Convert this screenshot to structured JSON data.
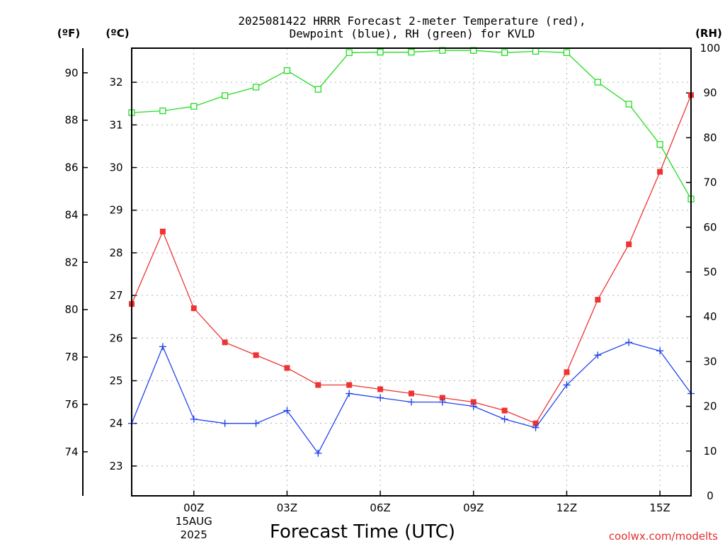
{
  "chart_data": {
    "type": "line",
    "title": "2025081422 HRRR Forecast 2-meter Temperature (red),",
    "subtitle": "Dewpoint (blue), RH (green) for KVLD",
    "xlabel": "Forecast Time (UTC)",
    "credit": "coolwx.com/modelts",
    "x_hours": [
      -2,
      -1,
      0,
      1,
      2,
      3,
      4,
      5,
      6,
      7,
      8,
      9,
      10,
      11,
      12,
      13,
      14,
      15,
      16
    ],
    "x_ticks": [
      {
        "hour": 0,
        "label": "00Z",
        "sub1": "15AUG",
        "sub2": "2025"
      },
      {
        "hour": 3,
        "label": "03Z"
      },
      {
        "hour": 6,
        "label": "06Z"
      },
      {
        "hour": 9,
        "label": "09Z"
      },
      {
        "hour": 12,
        "label": "12Z"
      },
      {
        "hour": 15,
        "label": "15Z"
      }
    ],
    "xlim": [
      -2,
      16
    ],
    "axes": {
      "fahrenheit": {
        "unit": "(ºF)",
        "ticks": [
          74,
          76,
          78,
          80,
          82,
          84,
          86,
          88,
          90
        ]
      },
      "celsius": {
        "unit": "(ºC)",
        "ticks": [
          23,
          24,
          25,
          26,
          27,
          28,
          29,
          30,
          31,
          32
        ],
        "ylim": [
          22.3,
          32.8
        ]
      },
      "rh": {
        "unit": "(RH)",
        "ticks": [
          0,
          10,
          20,
          30,
          40,
          50,
          60,
          70,
          80,
          90,
          100
        ],
        "ylim": [
          0,
          100
        ]
      }
    },
    "series": [
      {
        "key": "temperature",
        "axis": "celsius",
        "color": "#ee3333",
        "marker": "square-filled",
        "values": [
          26.8,
          28.5,
          26.7,
          25.9,
          25.6,
          25.3,
          24.9,
          24.9,
          24.8,
          24.7,
          24.6,
          24.5,
          24.3,
          24.0,
          25.2,
          26.9,
          28.2,
          29.9,
          31.7
        ]
      },
      {
        "key": "dewpoint",
        "axis": "celsius",
        "color": "#2244ee",
        "marker": "plus",
        "values": [
          24.0,
          25.8,
          24.1,
          24.0,
          24.0,
          24.3,
          23.3,
          24.7,
          24.6,
          24.5,
          24.5,
          24.4,
          24.1,
          23.9,
          24.9,
          25.6,
          25.9,
          25.7,
          24.7
        ]
      },
      {
        "key": "rh",
        "axis": "rh",
        "color": "#22dd22",
        "marker": "square-open",
        "values": [
          85.6,
          86.0,
          87.0,
          89.4,
          91.3,
          95.0,
          90.8,
          99.0,
          99.1,
          99.1,
          99.5,
          99.5,
          99.0,
          99.3,
          99.0,
          92.4,
          87.5,
          78.5,
          66.3
        ]
      }
    ]
  }
}
